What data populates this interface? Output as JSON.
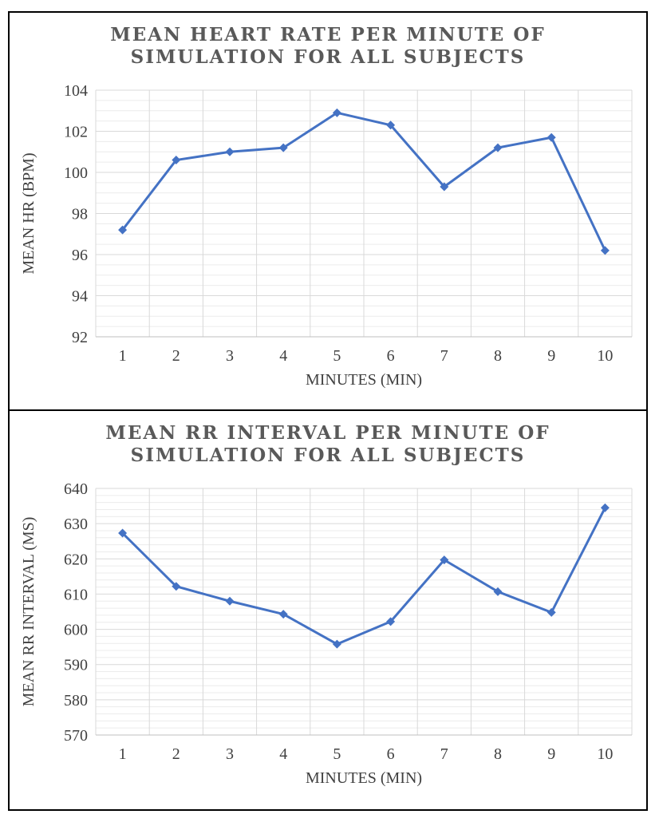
{
  "chart_data": [
    {
      "type": "line",
      "title": "MEAN HEART RATE PER MINUTE OF SIMULATION FOR ALL SUBJECTS",
      "xlabel": "MINUTES (MIN)",
      "ylabel": "MEAN HR (BPM)",
      "categories": [
        "1",
        "2",
        "3",
        "4",
        "5",
        "6",
        "7",
        "8",
        "9",
        "10"
      ],
      "series": [
        {
          "values": [
            97.2,
            100.6,
            101.0,
            101.2,
            102.9,
            102.3,
            99.3,
            101.2,
            101.7,
            96.2
          ]
        }
      ],
      "ylim": [
        92,
        104
      ],
      "yticks": [
        92,
        94,
        96,
        98,
        100,
        102,
        104
      ],
      "minor_step": 0.5,
      "grid": true,
      "legend": "none",
      "color": "#4472C4"
    },
    {
      "type": "line",
      "title": "MEAN RR INTERVAL PER MINUTE OF SIMULATION FOR ALL SUBJECTS",
      "xlabel": "MINUTES (MIN)",
      "ylabel": "MEAN RR INTERVAL (MS)",
      "categories": [
        "1",
        "2",
        "3",
        "4",
        "5",
        "6",
        "7",
        "8",
        "9",
        "10"
      ],
      "series": [
        {
          "values": [
            627.3,
            612.2,
            608.0,
            604.3,
            595.8,
            602.2,
            619.7,
            610.7,
            604.8,
            634.5
          ]
        }
      ],
      "ylim": [
        570,
        640
      ],
      "yticks": [
        570,
        580,
        590,
        600,
        610,
        620,
        630,
        640
      ],
      "minor_step": 2,
      "grid": true,
      "legend": "none",
      "color": "#4472C4"
    }
  ]
}
